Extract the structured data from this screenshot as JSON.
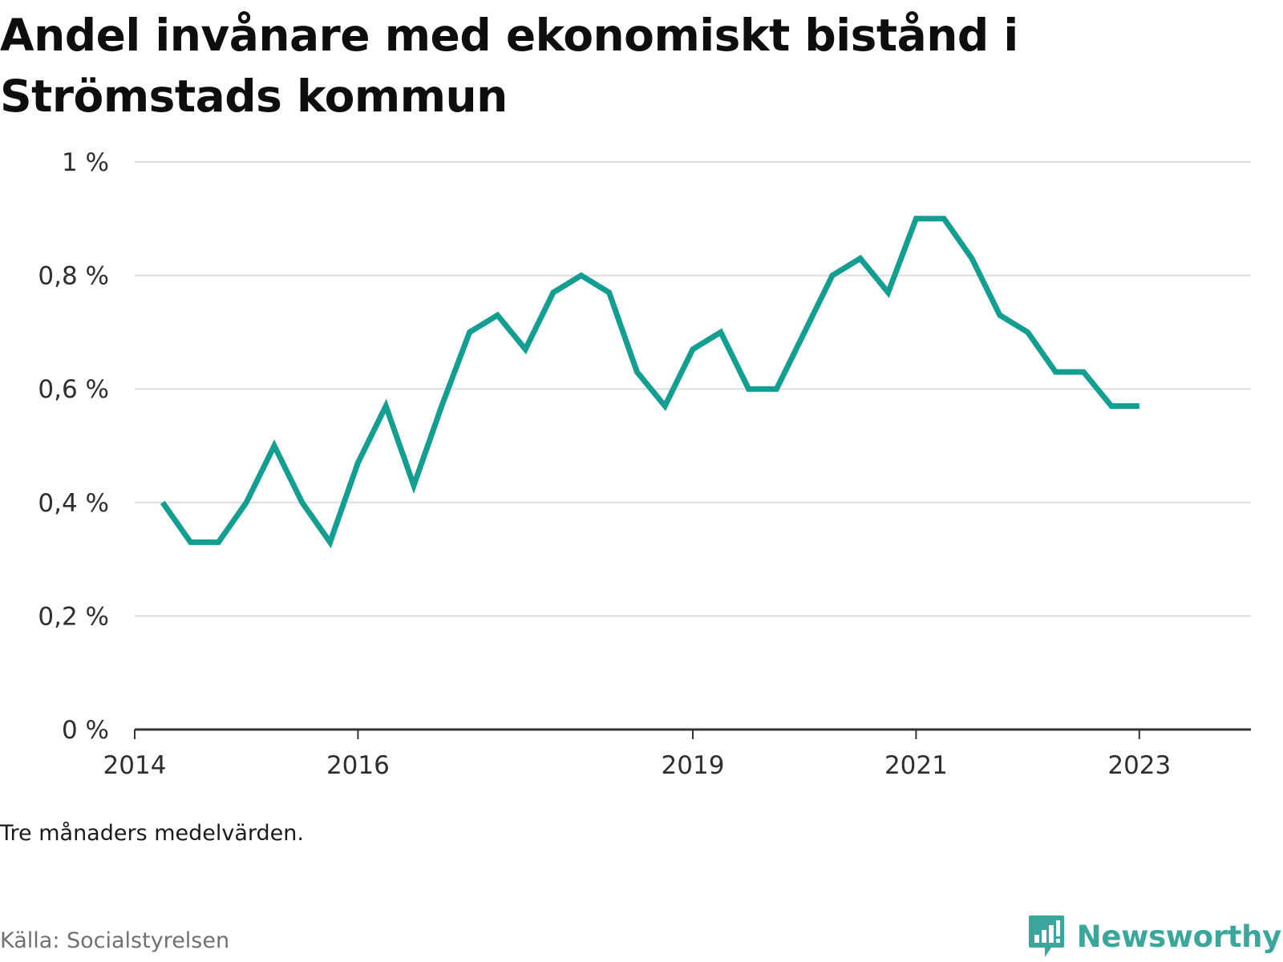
{
  "title_line1": "Andel invånare med ekonomiskt bistånd i",
  "title_line2": "Strömstads kommun",
  "note": "Tre månaders medelvärden.",
  "source": "Källa: Socialstyrelsen",
  "brand": "Newsworthy",
  "colors": {
    "line": "#139e92",
    "grid": "#dddddd",
    "axis": "#333333",
    "brand": "#3aa69c"
  },
  "chart_data": {
    "type": "line",
    "title": "Andel invånare med ekonomiskt bistånd i Strömstads kommun",
    "xlabel": "",
    "ylabel": "",
    "ylim": [
      0,
      1
    ],
    "xlim": [
      2014.0,
      2024.0
    ],
    "y_ticks": [
      {
        "value": 0,
        "label": "0 %"
      },
      {
        "value": 0.2,
        "label": "0,2 %"
      },
      {
        "value": 0.4,
        "label": "0,4 %"
      },
      {
        "value": 0.6,
        "label": "0,6 %"
      },
      {
        "value": 0.8,
        "label": "0,8 %"
      },
      {
        "value": 1,
        "label": "1 %"
      }
    ],
    "x_ticks": [
      {
        "value": 2014.0,
        "label": "2014"
      },
      {
        "value": 2016.0,
        "label": "2016"
      },
      {
        "value": 2019.0,
        "label": "2019"
      },
      {
        "value": 2021.0,
        "label": "2021"
      },
      {
        "value": 2023.0,
        "label": "2023"
      }
    ],
    "grid": true,
    "x": [
      "2014-04",
      "2014-07",
      "2014-10",
      "2015-01",
      "2015-04",
      "2015-07",
      "2015-10",
      "2016-01",
      "2016-04",
      "2016-07",
      "2016-10",
      "2017-01",
      "2017-04",
      "2017-07",
      "2017-10",
      "2018-01",
      "2018-04",
      "2018-07",
      "2018-10",
      "2019-01",
      "2019-04",
      "2019-07",
      "2019-10",
      "2020-01",
      "2020-04",
      "2020-07",
      "2020-10",
      "2021-01",
      "2021-04",
      "2021-07",
      "2021-10",
      "2022-01",
      "2022-04",
      "2022-07",
      "2022-10",
      "2023-01"
    ],
    "series": [
      {
        "values": [
          0.4,
          0.33,
          0.33,
          0.4,
          0.5,
          0.4,
          0.33,
          0.47,
          0.57,
          0.43,
          0.57,
          0.7,
          0.73,
          0.67,
          0.77,
          0.8,
          0.77,
          0.63,
          0.57,
          0.67,
          0.7,
          0.6,
          0.6,
          0.7,
          0.8,
          0.83,
          0.77,
          0.9,
          0.9,
          0.83,
          0.73,
          0.7,
          0.63,
          0.63,
          0.57,
          0.57
        ]
      }
    ]
  }
}
